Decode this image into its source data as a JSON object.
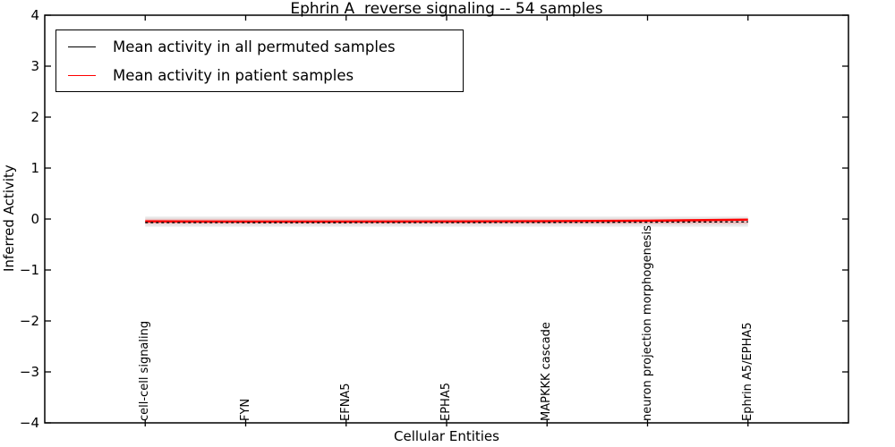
{
  "chart_data": {
    "type": "line",
    "title": "Ephrin A  reverse signaling -- 54 samples",
    "xlabel": "Cellular Entities",
    "ylabel": "Inferred Activity",
    "xlim": [
      0,
      8
    ],
    "ylim": [
      -4,
      4
    ],
    "grid": false,
    "legend_position": "upper left",
    "yticks": [
      -4,
      -3,
      -2,
      -1,
      0,
      1,
      2,
      3,
      4
    ],
    "ytick_labels": [
      "−4",
      "−3",
      "−2",
      "−1",
      "0",
      "1",
      "2",
      "3",
      "4"
    ],
    "categories": [
      "cell-cell signaling",
      "FYN",
      "EFNA5",
      "EPHA5",
      "MAPKKK cascade",
      "neuron projection morphogenesis",
      "Ephrin A5/EPHA5"
    ],
    "x": [
      1,
      2,
      3,
      4,
      5,
      6,
      7
    ],
    "series": [
      {
        "name": "Mean activity in all permuted samples",
        "color": "#000000",
        "style": "dashed",
        "values": [
          -0.068,
          -0.07,
          -0.07,
          -0.069,
          -0.066,
          -0.062,
          -0.055
        ]
      },
      {
        "name": "Mean activity in patient samples",
        "color": "#ff0000",
        "style": "solid",
        "values": [
          -0.046,
          -0.05,
          -0.049,
          -0.047,
          -0.042,
          -0.034,
          -0.012
        ]
      }
    ],
    "bands": [
      {
        "name": "permuted-sample-range",
        "upper": 0.045,
        "lower": -0.15,
        "color": "#e7e7e7"
      },
      {
        "name": "patient-sample-range",
        "upper": 0.005,
        "lower": -0.098,
        "color": "rgba(255,0,0,0.16)"
      }
    ]
  }
}
